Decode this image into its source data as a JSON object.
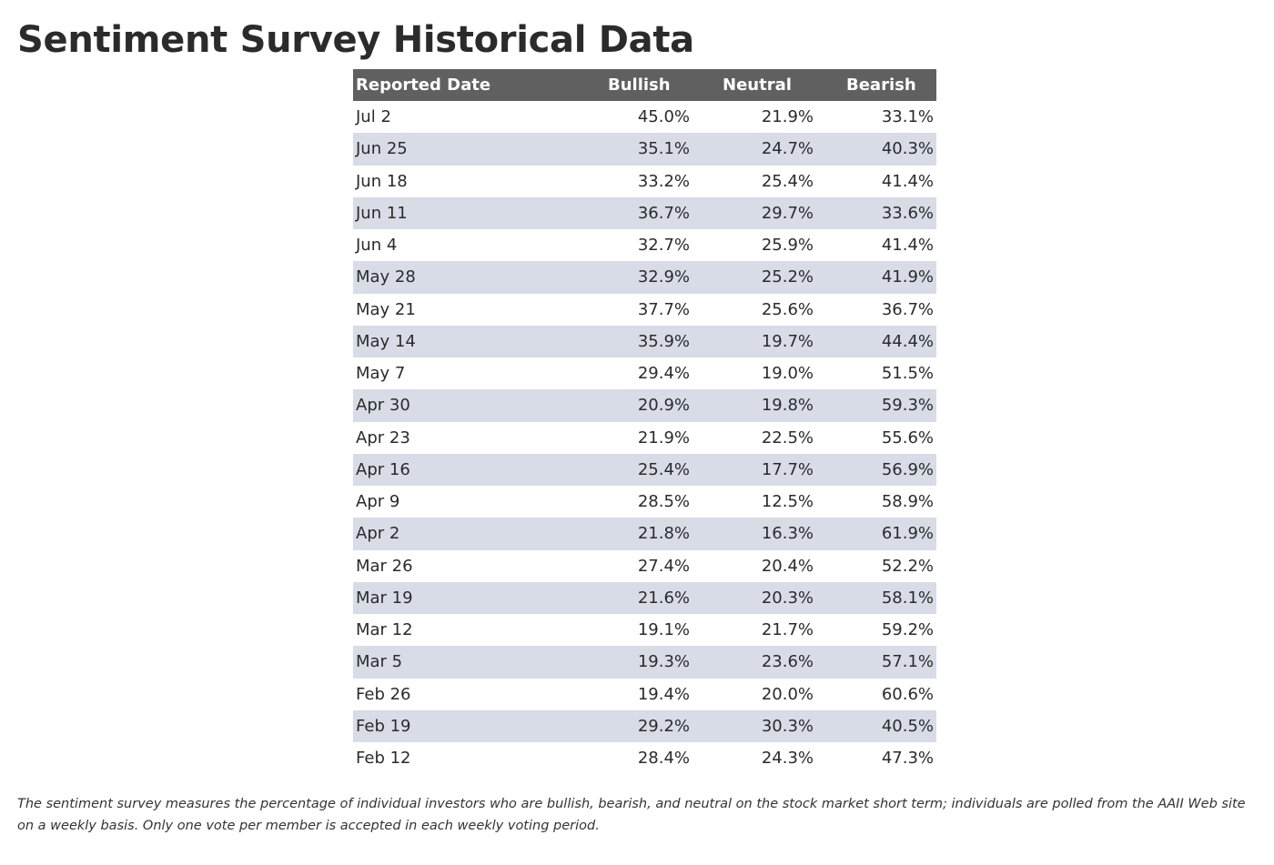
{
  "title": "Sentiment Survey Historical Data",
  "table": {
    "headers": [
      "Reported Date",
      "Bullish",
      "Neutral",
      "Bearish"
    ],
    "rows": [
      [
        "Jul 2",
        "45.0%",
        "21.9%",
        "33.1%"
      ],
      [
        "Jun 25",
        "35.1%",
        "24.7%",
        "40.3%"
      ],
      [
        "Jun 18",
        "33.2%",
        "25.4%",
        "41.4%"
      ],
      [
        "Jun 11",
        "36.7%",
        "29.7%",
        "33.6%"
      ],
      [
        "Jun 4",
        "32.7%",
        "25.9%",
        "41.4%"
      ],
      [
        "May 28",
        "32.9%",
        "25.2%",
        "41.9%"
      ],
      [
        "May 21",
        "37.7%",
        "25.6%",
        "36.7%"
      ],
      [
        "May 14",
        "35.9%",
        "19.7%",
        "44.4%"
      ],
      [
        "May 7",
        "29.4%",
        "19.0%",
        "51.5%"
      ],
      [
        "Apr 30",
        "20.9%",
        "19.8%",
        "59.3%"
      ],
      [
        "Apr 23",
        "21.9%",
        "22.5%",
        "55.6%"
      ],
      [
        "Apr 16",
        "25.4%",
        "17.7%",
        "56.9%"
      ],
      [
        "Apr 9",
        "28.5%",
        "12.5%",
        "58.9%"
      ],
      [
        "Apr 2",
        "21.8%",
        "16.3%",
        "61.9%"
      ],
      [
        "Mar 26",
        "27.4%",
        "20.4%",
        "52.2%"
      ],
      [
        "Mar 19",
        "21.6%",
        "20.3%",
        "58.1%"
      ],
      [
        "Mar 12",
        "19.1%",
        "21.7%",
        "59.2%"
      ],
      [
        "Mar 5",
        "19.3%",
        "23.6%",
        "57.1%"
      ],
      [
        "Feb 26",
        "19.4%",
        "20.0%",
        "60.6%"
      ],
      [
        "Feb 19",
        "29.2%",
        "30.3%",
        "40.5%"
      ],
      [
        "Feb 12",
        "28.4%",
        "24.3%",
        "47.3%"
      ]
    ]
  },
  "footnote": "The sentiment survey measures the percentage of individual investors who are bullish, bearish, and neutral on the stock market short term; individuals are polled from the AAII Web site on a weekly basis. Only one vote per member is accepted in each weekly voting period.",
  "colors": {
    "header_bg": "#606060",
    "header_text": "#ffffff",
    "stripe_bg": "#d7dce6"
  }
}
